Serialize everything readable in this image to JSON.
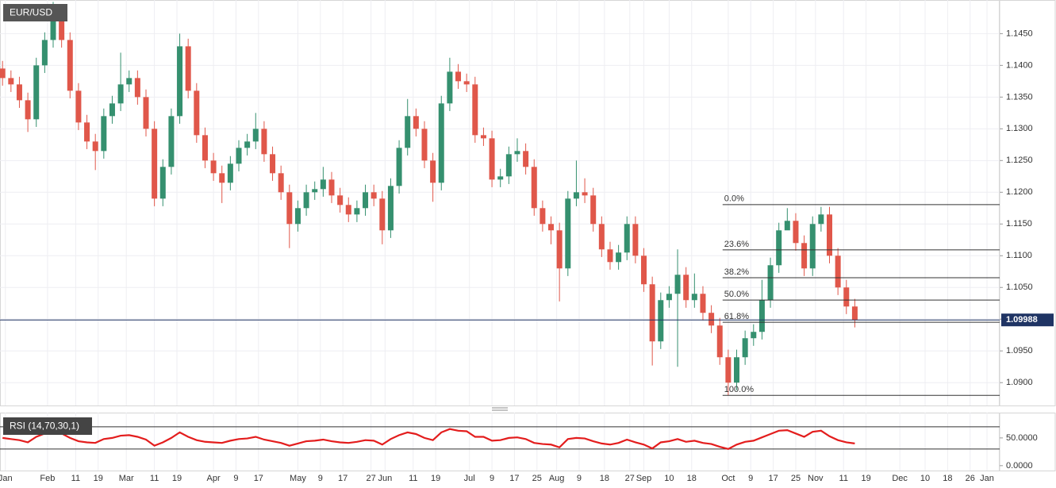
{
  "chart_data": {
    "type": "candlestick",
    "title": "EUR/USD",
    "x": [
      16,
      19,
      22,
      25,
      28,
      31,
      34,
      37,
      40,
      43,
      46,
      49,
      52,
      55,
      58,
      61,
      64,
      67,
      70,
      73,
      76,
      79,
      82,
      85,
      88,
      91,
      94,
      97,
      100,
      103,
      106,
      109,
      112,
      115,
      118,
      121,
      124,
      127,
      130,
      133,
      136,
      139,
      142,
      145,
      148,
      151,
      154,
      157,
      160,
      163,
      166,
      169,
      172,
      175,
      178,
      181,
      184,
      187,
      190,
      193,
      196,
      199,
      202,
      205,
      208,
      211,
      214,
      217,
      220,
      223,
      226,
      229,
      232,
      235,
      238,
      241,
      244,
      247,
      250,
      253,
      256,
      259,
      262,
      265,
      268,
      271,
      274,
      277,
      280,
      283,
      286,
      289,
      292,
      295,
      298,
      301,
      304,
      307,
      310,
      313,
      316,
      319
    ],
    "open": [
      1.1395,
      1.138,
      1.137,
      1.1345,
      1.1315,
      1.14,
      1.144,
      1.147,
      1.144,
      1.136,
      1.131,
      1.128,
      1.1265,
      1.132,
      1.134,
      1.137,
      1.138,
      1.135,
      1.13,
      1.119,
      1.124,
      1.132,
      1.143,
      1.136,
      1.129,
      1.125,
      1.123,
      1.1215,
      1.1245,
      1.127,
      1.128,
      1.13,
      1.126,
      1.123,
      1.12,
      1.115,
      1.1175,
      1.12,
      1.1205,
      1.122,
      1.1195,
      1.118,
      1.1165,
      1.1175,
      1.12,
      1.119,
      1.114,
      1.121,
      1.127,
      1.132,
      1.13,
      1.125,
      1.1215,
      1.134,
      1.139,
      1.1375,
      1.137,
      1.129,
      1.1285,
      1.122,
      1.1225,
      1.126,
      1.1265,
      1.124,
      1.1175,
      1.115,
      1.114,
      1.108,
      1.119,
      1.12,
      1.1195,
      1.115,
      1.111,
      1.109,
      1.1105,
      1.115,
      1.11,
      1.1055,
      1.0965,
      1.103,
      1.104,
      1.107,
      1.103,
      1.104,
      1.101,
      1.099,
      1.094,
      1.09,
      1.094,
      1.097,
      1.098,
      1.103,
      1.1085,
      1.114,
      1.1155,
      1.112,
      1.108,
      1.115,
      1.1165,
      1.11,
      1.105,
      1.102
    ],
    "high": [
      1.1407,
      1.1392,
      1.1382,
      1.1357,
      1.1412,
      1.1452,
      1.15,
      1.1482,
      1.1452,
      1.1372,
      1.1322,
      1.1292,
      1.1332,
      1.1352,
      1.142,
      1.1392,
      1.1392,
      1.1362,
      1.1312,
      1.1252,
      1.1332,
      1.145,
      1.1442,
      1.1372,
      1.1302,
      1.1262,
      1.1242,
      1.1257,
      1.1282,
      1.1292,
      1.1325,
      1.1312,
      1.1272,
      1.1242,
      1.1212,
      1.1187,
      1.1212,
      1.1217,
      1.124,
      1.1232,
      1.1207,
      1.1192,
      1.1187,
      1.1212,
      1.1212,
      1.1202,
      1.1222,
      1.1282,
      1.1347,
      1.1332,
      1.1312,
      1.1262,
      1.1352,
      1.1412,
      1.1402,
      1.1387,
      1.1382,
      1.1302,
      1.1297,
      1.1237,
      1.1272,
      1.1285,
      1.1277,
      1.1252,
      1.1187,
      1.1162,
      1.1152,
      1.1202,
      1.125,
      1.1222,
      1.1207,
      1.1162,
      1.1122,
      1.1117,
      1.1162,
      1.1162,
      1.1112,
      1.1067,
      1.1042,
      1.1052,
      1.111,
      1.1082,
      1.1072,
      1.1052,
      1.1022,
      1.1002,
      1.0952,
      1.0952,
      1.0982,
      1.0992,
      1.1062,
      1.1097,
      1.1152,
      1.1175,
      1.1167,
      1.1132,
      1.1162,
      1.1177,
      1.1177,
      1.1112,
      1.1062,
      1.1032
    ],
    "low": [
      1.1368,
      1.1358,
      1.1333,
      1.1295,
      1.1303,
      1.1388,
      1.1428,
      1.1428,
      1.1348,
      1.1298,
      1.1268,
      1.1235,
      1.1253,
      1.1308,
      1.1328,
      1.1358,
      1.1338,
      1.1288,
      1.1178,
      1.1178,
      1.1228,
      1.1308,
      1.1348,
      1.1278,
      1.1238,
      1.1218,
      1.1183,
      1.1203,
      1.1233,
      1.1258,
      1.1268,
      1.1248,
      1.1218,
      1.1188,
      1.1112,
      1.1138,
      1.1163,
      1.1188,
      1.1193,
      1.1183,
      1.1168,
      1.1153,
      1.1153,
      1.1163,
      1.1178,
      1.1118,
      1.1128,
      1.1198,
      1.1258,
      1.1288,
      1.1238,
      1.1185,
      1.1203,
      1.1328,
      1.1363,
      1.1358,
      1.1278,
      1.1273,
      1.1208,
      1.1208,
      1.1213,
      1.1248,
      1.1228,
      1.1163,
      1.1138,
      1.1118,
      1.1028,
      1.1068,
      1.1178,
      1.1183,
      1.1138,
      1.1098,
      1.1078,
      1.1078,
      1.1093,
      1.1088,
      1.1043,
      1.0927,
      1.0953,
      1.1018,
      1.0925,
      1.1018,
      1.1018,
      1.0998,
      1.0978,
      1.0928,
      1.088,
      1.0888,
      1.0928,
      1.0958,
      1.0968,
      1.1018,
      1.1073,
      1.1143,
      1.1108,
      1.1068,
      1.1068,
      1.1138,
      1.1088,
      1.1038,
      1.1008,
      1.0987
    ],
    "close": [
      1.138,
      1.137,
      1.1345,
      1.1315,
      1.14,
      1.144,
      1.147,
      1.144,
      1.136,
      1.131,
      1.128,
      1.1265,
      1.132,
      1.134,
      1.137,
      1.138,
      1.135,
      1.13,
      1.119,
      1.124,
      1.132,
      1.143,
      1.136,
      1.129,
      1.125,
      1.123,
      1.1215,
      1.1245,
      1.127,
      1.128,
      1.13,
      1.126,
      1.123,
      1.12,
      1.115,
      1.1175,
      1.12,
      1.1205,
      1.122,
      1.1195,
      1.118,
      1.1165,
      1.1175,
      1.12,
      1.119,
      1.114,
      1.121,
      1.127,
      1.132,
      1.13,
      1.125,
      1.1215,
      1.134,
      1.139,
      1.1375,
      1.137,
      1.129,
      1.1285,
      1.122,
      1.1225,
      1.126,
      1.1265,
      1.124,
      1.1175,
      1.115,
      1.114,
      1.108,
      1.119,
      1.12,
      1.1195,
      1.115,
      1.111,
      1.109,
      1.1105,
      1.115,
      1.11,
      1.1055,
      1.0965,
      1.103,
      1.104,
      1.107,
      1.103,
      1.104,
      1.101,
      1.099,
      1.094,
      1.09,
      1.094,
      1.097,
      1.098,
      1.103,
      1.1085,
      1.114,
      1.1155,
      1.112,
      1.108,
      1.115,
      1.1165,
      1.11,
      1.105,
      1.102,
      1.09988
    ],
    "up_color": "#35906f",
    "down_color": "#e0574a",
    "last_price_color": "#1f3464",
    "grid": true,
    "xlim": [
      15.1,
      370.5
    ],
    "xticks": [
      {
        "value": 17,
        "label": "Jan"
      },
      {
        "value": 32,
        "label": "Feb"
      },
      {
        "value": 42,
        "label": "11"
      },
      {
        "value": 50,
        "label": "19"
      },
      {
        "value": 60,
        "label": "Mar"
      },
      {
        "value": 70,
        "label": "11"
      },
      {
        "value": 78,
        "label": "19"
      },
      {
        "value": 91,
        "label": "Apr"
      },
      {
        "value": 99,
        "label": "9"
      },
      {
        "value": 107,
        "label": "17"
      },
      {
        "value": 121,
        "label": "May"
      },
      {
        "value": 129,
        "label": "9"
      },
      {
        "value": 137,
        "label": "17"
      },
      {
        "value": 147,
        "label": "27"
      },
      {
        "value": 152,
        "label": "Jun"
      },
      {
        "value": 162,
        "label": "11"
      },
      {
        "value": 170,
        "label": "19"
      },
      {
        "value": 182,
        "label": "Jul"
      },
      {
        "value": 190,
        "label": "9"
      },
      {
        "value": 198,
        "label": "17"
      },
      {
        "value": 206,
        "label": "25"
      },
      {
        "value": 213,
        "label": "Aug"
      },
      {
        "value": 221,
        "label": "9"
      },
      {
        "value": 230,
        "label": "18"
      },
      {
        "value": 239,
        "label": "27"
      },
      {
        "value": 244,
        "label": "Sep"
      },
      {
        "value": 253,
        "label": "10"
      },
      {
        "value": 261,
        "label": "18"
      },
      {
        "value": 274,
        "label": "Oct"
      },
      {
        "value": 282,
        "label": "9"
      },
      {
        "value": 290,
        "label": "17"
      },
      {
        "value": 298,
        "label": "25"
      },
      {
        "value": 305,
        "label": "Nov"
      },
      {
        "value": 315,
        "label": "11"
      },
      {
        "value": 323,
        "label": "19"
      },
      {
        "value": 335,
        "label": "Dec"
      },
      {
        "value": 344,
        "label": "10"
      },
      {
        "value": 352,
        "label": "18"
      },
      {
        "value": 360,
        "label": "26"
      },
      {
        "value": 366,
        "label": "Jan"
      }
    ],
    "ylim": [
      1.0864,
      1.1503
    ],
    "yticks": [
      {
        "value": 1.09,
        "label": "1.0900"
      },
      {
        "value": 1.095,
        "label": "1.0950"
      },
      {
        "value": 1.1,
        "label": "1.1000"
      },
      {
        "value": 1.105,
        "label": "1.1050"
      },
      {
        "value": 1.11,
        "label": "1.1100"
      },
      {
        "value": 1.115,
        "label": "1.1150"
      },
      {
        "value": 1.12,
        "label": "1.1200"
      },
      {
        "value": 1.125,
        "label": "1.1250"
      },
      {
        "value": 1.13,
        "label": "1.1300"
      },
      {
        "value": 1.135,
        "label": "1.1350"
      },
      {
        "value": 1.14,
        "label": "1.1400"
      },
      {
        "value": 1.145,
        "label": "1.1450"
      }
    ],
    "fib": {
      "start": 272,
      "color": "#333333",
      "levels": [
        {
          "price": 1.11806,
          "label": "0.0%"
        },
        {
          "price": 1.11092,
          "label": "23.6%"
        },
        {
          "price": 1.10653,
          "label": "38.2%"
        },
        {
          "price": 1.10302,
          "label": "50.0%"
        },
        {
          "price": 1.09952,
          "label": "61.8%"
        },
        {
          "price": 1.08799,
          "label": "100.0%"
        }
      ]
    },
    "rsi": {
      "title": "RSI (14,70,30,1)",
      "color": "#e31d1d",
      "ylim": [
        -8.8,
        95.6
      ],
      "levels": [
        70,
        30
      ],
      "yticks": [
        {
          "value": 50,
          "label": "50.0000"
        },
        {
          "value": 0,
          "label": "0.0000"
        }
      ],
      "values": [
        50,
        48,
        46,
        42,
        52,
        58,
        62,
        58,
        50,
        44,
        42,
        41,
        48,
        50,
        54,
        55,
        52,
        47,
        36,
        42,
        50,
        60,
        52,
        46,
        43,
        42,
        41,
        45,
        48,
        49,
        52,
        47,
        44,
        41,
        36,
        40,
        44,
        45,
        47,
        44,
        42,
        41,
        43,
        46,
        45,
        38,
        48,
        55,
        60,
        57,
        50,
        46,
        60,
        66,
        63,
        62,
        52,
        52,
        45,
        46,
        50,
        51,
        48,
        41,
        39,
        38,
        33,
        48,
        50,
        49,
        44,
        40,
        38,
        41,
        47,
        42,
        38,
        31,
        42,
        44,
        48,
        43,
        45,
        41,
        39,
        34,
        30,
        38,
        43,
        45,
        51,
        57,
        63,
        64,
        58,
        52,
        61,
        63,
        53,
        46,
        42,
        40
      ]
    }
  }
}
